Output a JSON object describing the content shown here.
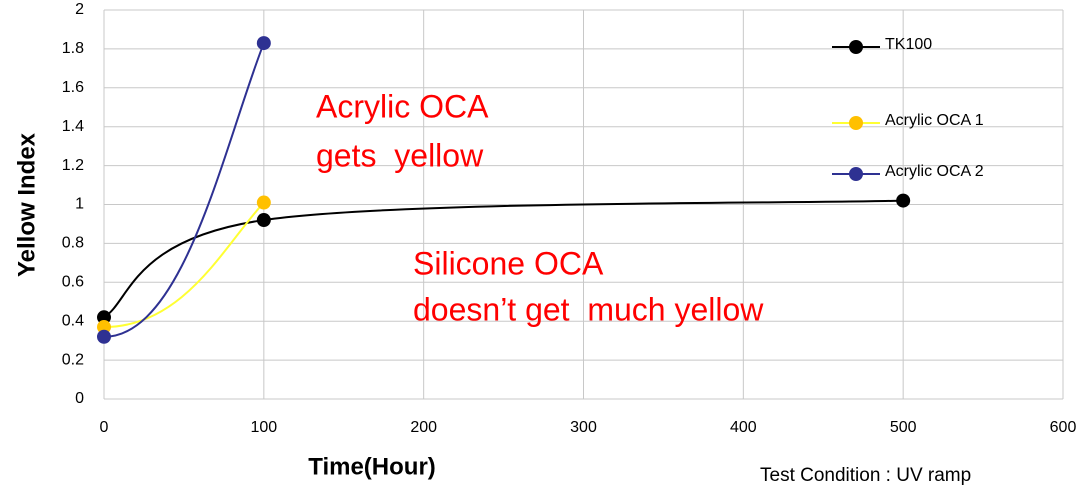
{
  "chart_data": {
    "type": "line",
    "xlabel": "Time(Hour)",
    "ylabel": "Yellow Index",
    "series": [
      {
        "name": "TK100",
        "color": "#000000",
        "marker_color": "#000000",
        "x": [
          0,
          100,
          500
        ],
        "values": [
          0.42,
          0.92,
          1.02
        ]
      },
      {
        "name": "Acrylic OCA 1",
        "color": "#ffff33",
        "marker_color": "#ffc000",
        "x": [
          0,
          100
        ],
        "values": [
          0.37,
          1.01
        ]
      },
      {
        "name": "Acrylic OCA 2",
        "color": "#2e3192",
        "marker_color": "#2e3192",
        "x": [
          0,
          100
        ],
        "values": [
          0.32,
          1.83
        ]
      }
    ],
    "xlim": [
      0,
      600
    ],
    "xticks": [
      0,
      100,
      200,
      300,
      400,
      500,
      600
    ],
    "ylim": [
      0,
      2
    ],
    "yticks": [
      0,
      0.2,
      0.4,
      0.6,
      0.8,
      1,
      1.2,
      1.4,
      1.6,
      1.8,
      2
    ],
    "grid": true,
    "legend": "upper right",
    "annotations": [
      "Acrylic OCA",
      "gets  yellow",
      "Silicone OCA",
      "doesn’t get  much yellow"
    ],
    "note": "Test Condition : UV ramp"
  }
}
